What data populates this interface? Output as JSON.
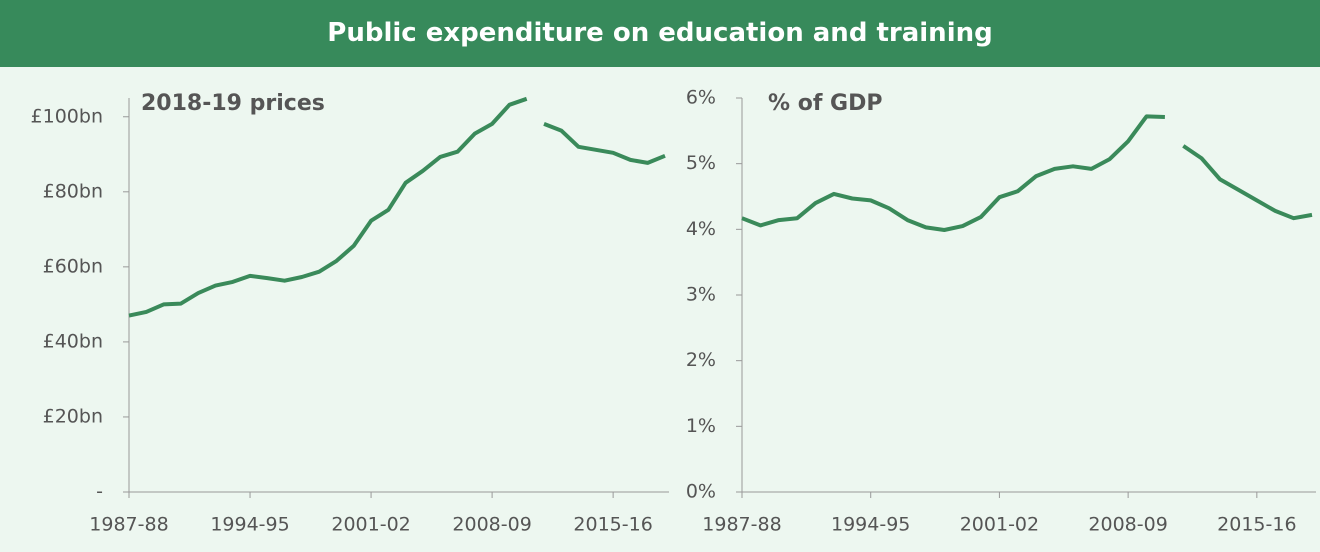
{
  "title": "Public expenditure on education and training",
  "chart_data": [
    {
      "type": "line",
      "subtitle": "2018-19 prices",
      "categories": [
        "1987-88",
        null,
        null,
        null,
        null,
        null,
        null,
        "1994-95",
        null,
        null,
        null,
        null,
        null,
        null,
        "2001-02",
        null,
        null,
        null,
        null,
        null,
        null,
        "2008-09",
        null,
        null,
        null,
        null,
        null,
        null,
        "2015-16",
        null,
        null,
        null
      ],
      "series": [
        {
          "color": "#3a8a5a",
          "values": [
            47,
            48,
            50,
            50.2,
            53,
            55,
            56,
            57.6,
            57,
            56.3,
            57.3,
            58.7,
            61.6,
            65.6,
            72.3,
            75.2,
            82.4,
            85.6,
            89.3,
            90.7,
            95.5,
            98.1,
            103.2,
            104.8,
            null,
            null,
            null,
            null,
            null,
            null,
            null,
            null
          ]
        },
        {
          "color": "#3a8a5a",
          "values": [
            null,
            null,
            null,
            null,
            null,
            null,
            null,
            null,
            null,
            null,
            null,
            null,
            null,
            null,
            null,
            null,
            null,
            null,
            null,
            null,
            null,
            null,
            null,
            null,
            98.1,
            96.3,
            92,
            91.2,
            90.4,
            88.5,
            87.7,
            89.6
          ]
        }
      ],
      "ylim": [
        0,
        105
      ],
      "yticks": [
        {
          "value": 0,
          "label": "-"
        },
        {
          "value": 20,
          "label": "£20bn"
        },
        {
          "value": 40,
          "label": "£40bn"
        },
        {
          "value": 60,
          "label": "£60bn"
        },
        {
          "value": 80,
          "label": "£80bn"
        },
        {
          "value": 100,
          "label": "£100bn"
        }
      ]
    },
    {
      "type": "line",
      "subtitle": "% of GDP",
      "categories": [
        "1987-88",
        null,
        null,
        null,
        null,
        null,
        null,
        "1994-95",
        null,
        null,
        null,
        null,
        null,
        null,
        "2001-02",
        null,
        null,
        null,
        null,
        null,
        null,
        "2008-09",
        null,
        null,
        null,
        null,
        null,
        null,
        "2015-16",
        null,
        null,
        null
      ],
      "series": [
        {
          "color": "#3a8a5a",
          "values": [
            4.17,
            4.06,
            4.14,
            4.17,
            4.4,
            4.54,
            4.47,
            4.44,
            4.32,
            4.14,
            4.03,
            3.99,
            4.05,
            4.19,
            4.49,
            4.58,
            4.81,
            4.92,
            4.96,
            4.92,
            5.07,
            5.34,
            5.72,
            5.71,
            null,
            null,
            null,
            null,
            null,
            null,
            null,
            null
          ]
        },
        {
          "color": "#3a8a5a",
          "values": [
            null,
            null,
            null,
            null,
            null,
            null,
            null,
            null,
            null,
            null,
            null,
            null,
            null,
            null,
            null,
            null,
            null,
            null,
            null,
            null,
            null,
            null,
            null,
            null,
            5.27,
            5.08,
            4.76,
            4.6,
            4.44,
            4.28,
            4.17,
            4.22
          ]
        }
      ],
      "ylim": [
        0,
        6
      ],
      "yticks": [
        {
          "value": 0,
          "label": "0%"
        },
        {
          "value": 1,
          "label": "1%"
        },
        {
          "value": 2,
          "label": "2%"
        },
        {
          "value": 3,
          "label": "3%"
        },
        {
          "value": 4,
          "label": "4%"
        },
        {
          "value": 5,
          "label": "5%"
        },
        {
          "value": 6,
          "label": "6%"
        }
      ]
    }
  ]
}
